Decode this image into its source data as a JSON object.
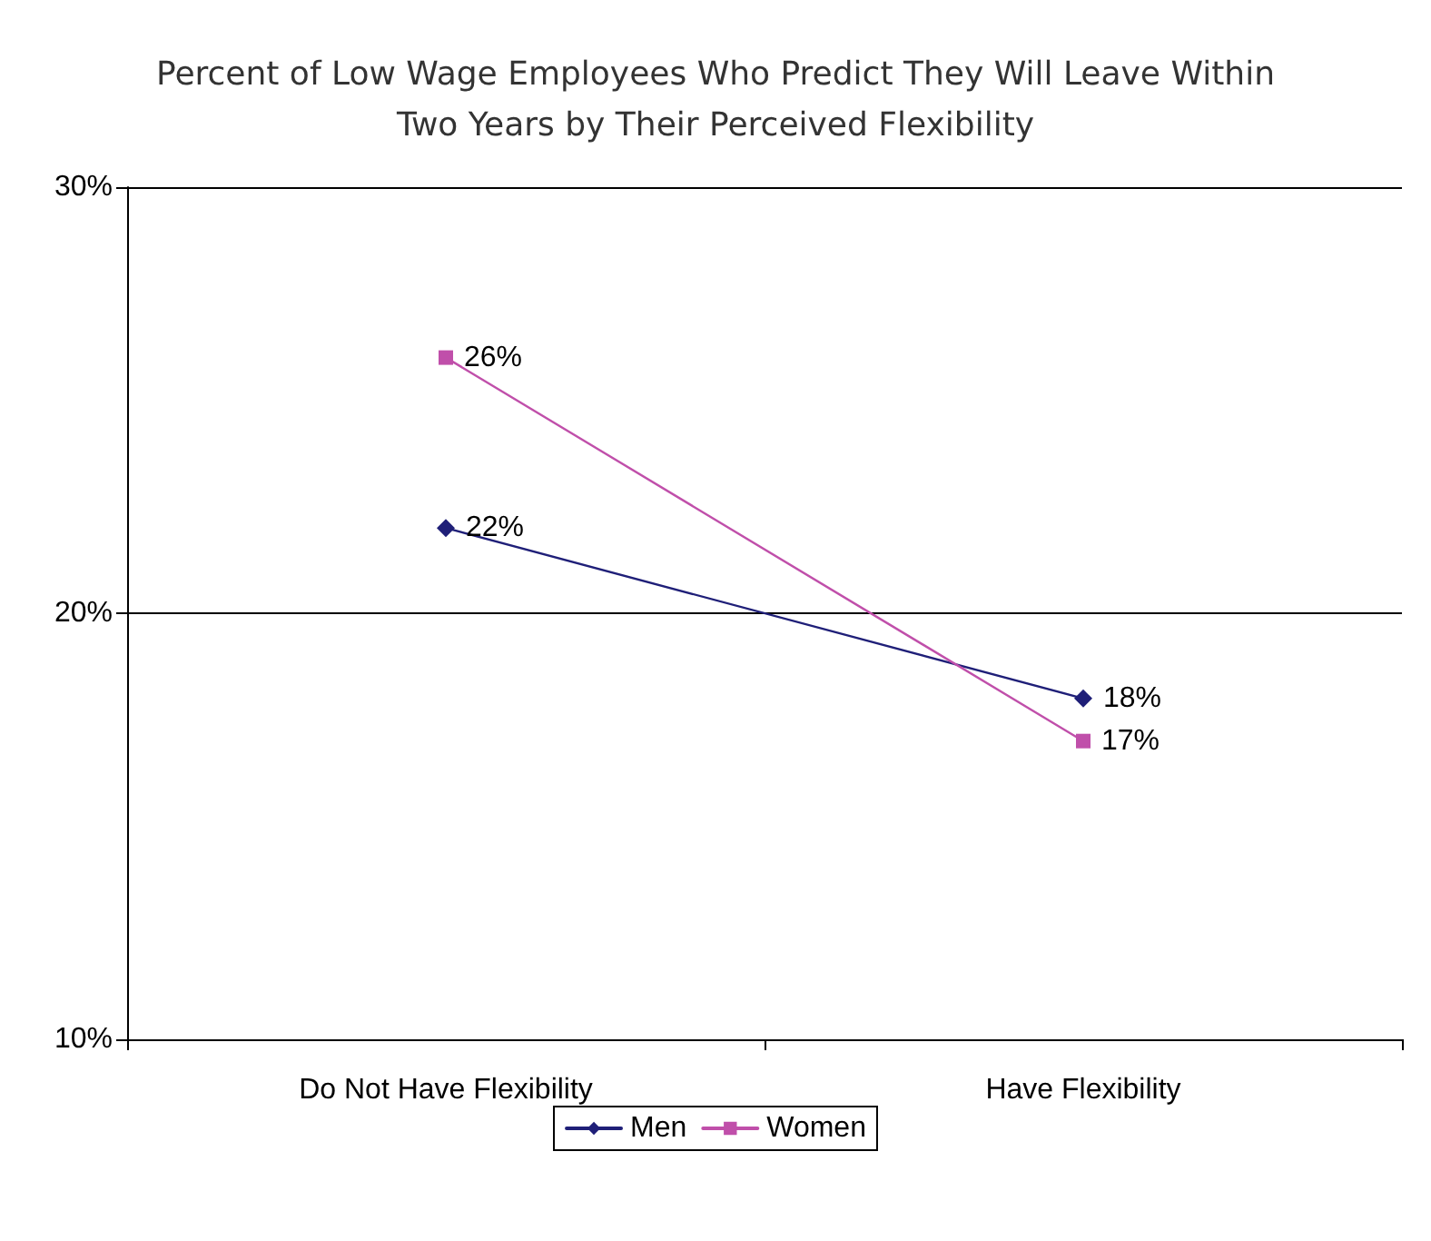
{
  "chart_data": {
    "type": "line",
    "title": "Percent of Low Wage Employees Who Predict They Will Leave Within\nTwo Years by Their Perceived Flexibility",
    "categories": [
      "Do Not Have Flexibility",
      "Have Flexibility"
    ],
    "series": [
      {
        "name": "Men",
        "color": "#1f1f78",
        "values": [
          22,
          18
        ],
        "marker": "diamond",
        "value_labels": [
          "22%",
          "18%"
        ]
      },
      {
        "name": "Women",
        "color": "#c04faa",
        "values": [
          26,
          17
        ],
        "marker": "square",
        "value_labels": [
          "26%",
          "17%"
        ]
      }
    ],
    "ylim": [
      10,
      30
    ],
    "yticks": [
      {
        "value": 10,
        "label": "10%"
      },
      {
        "value": 20,
        "label": "20%"
      },
      {
        "value": 30,
        "label": "30%"
      }
    ],
    "grid": "y",
    "legend": "bottom",
    "line_style": "solid"
  }
}
